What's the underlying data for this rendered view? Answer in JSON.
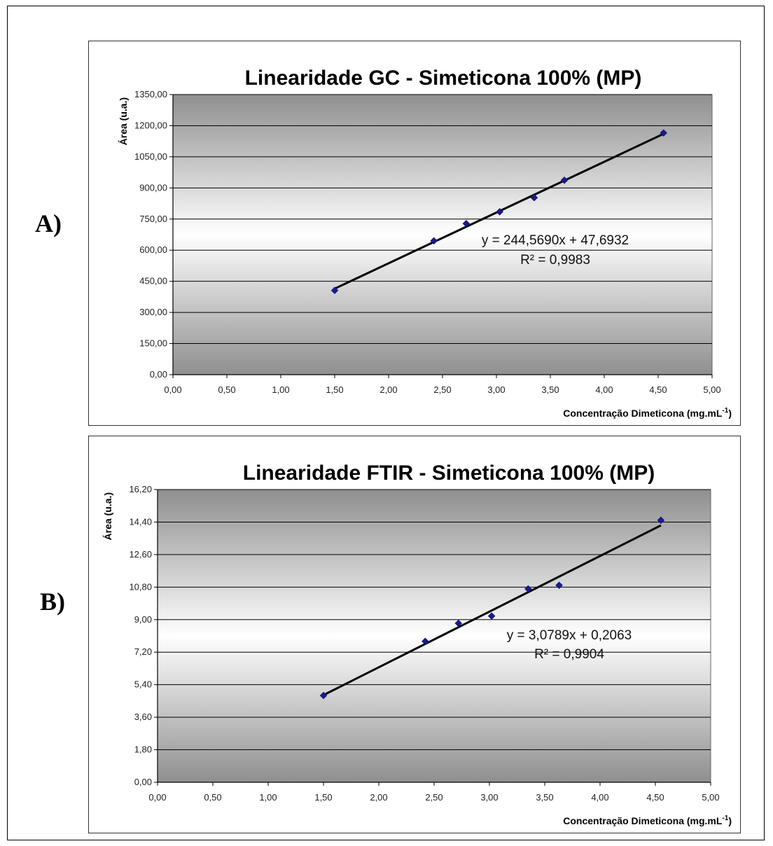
{
  "panels": [
    {
      "label": "A)"
    },
    {
      "label": "B)"
    }
  ],
  "chart_data": [
    {
      "type": "scatter",
      "title": "Linearidade GC - Simeticona 100% (MP)",
      "xlabel": "Concentração Dimeticona (mg.mL",
      "xlabel_sup": "-1",
      "xlabel_close": ")",
      "ylabel": "Área (u.a.)",
      "xlim": [
        0,
        5
      ],
      "ylim": [
        0,
        1350
      ],
      "x_ticks": [
        "0,00",
        "0,50",
        "1,00",
        "1,50",
        "2,00",
        "2,50",
        "3,00",
        "3,50",
        "4,00",
        "4,50",
        "5,00"
      ],
      "y_ticks": [
        "0,00",
        "150,00",
        "300,00",
        "450,00",
        "600,00",
        "750,00",
        "900,00",
        "1050,00",
        "1200,00",
        "1350,00"
      ],
      "points": [
        {
          "x": 1.5,
          "y": 406
        },
        {
          "x": 2.42,
          "y": 645
        },
        {
          "x": 2.72,
          "y": 728
        },
        {
          "x": 3.03,
          "y": 785
        },
        {
          "x": 3.35,
          "y": 853
        },
        {
          "x": 3.63,
          "y": 937
        },
        {
          "x": 4.55,
          "y": 1165
        }
      ],
      "trendline": {
        "slope": 244.569,
        "intercept": 47.6932,
        "x_range": [
          1.5,
          4.55
        ]
      },
      "equation": "y = 244,5690x + 47,6932",
      "r2": "R² = 0,9983",
      "grid": true,
      "marker_color": "#1a1a8c",
      "line_color": "#000000"
    },
    {
      "type": "scatter",
      "title": "Linearidade FTIR - Simeticona 100% (MP)",
      "xlabel": "Concentração Dimeticona (mg.mL",
      "xlabel_sup": "-1",
      "xlabel_close": ")",
      "ylabel": "Área (u.a.)",
      "xlim": [
        0,
        5
      ],
      "ylim": [
        0,
        16.2
      ],
      "x_ticks": [
        "0,00",
        "0,50",
        "1,00",
        "1,50",
        "2,00",
        "2,50",
        "3,00",
        "3,50",
        "4,00",
        "4,50",
        "5,00"
      ],
      "y_ticks": [
        "0,00",
        "1,80",
        "3,60",
        "5,40",
        "7,20",
        "9,00",
        "10,80",
        "12,60",
        "14,40",
        "16,20"
      ],
      "points": [
        {
          "x": 1.5,
          "y": 4.8
        },
        {
          "x": 2.42,
          "y": 7.8
        },
        {
          "x": 2.72,
          "y": 8.8
        },
        {
          "x": 3.02,
          "y": 9.2
        },
        {
          "x": 3.35,
          "y": 10.7
        },
        {
          "x": 3.63,
          "y": 10.9
        },
        {
          "x": 4.55,
          "y": 14.5
        }
      ],
      "trendline": {
        "slope": 3.0789,
        "intercept": 0.2063,
        "x_range": [
          1.5,
          4.55
        ]
      },
      "equation": "y = 3,0789x + 0,2063",
      "r2": "R² = 0,9904",
      "grid": true,
      "marker_color": "#1a1a8c",
      "line_color": "#000000"
    }
  ]
}
